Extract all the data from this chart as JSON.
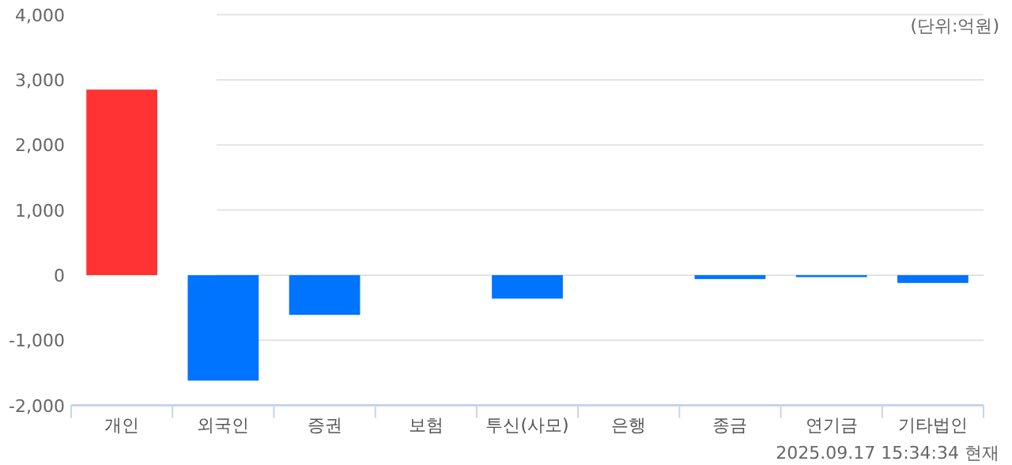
{
  "chart_data": {
    "type": "bar",
    "categories": [
      "개인",
      "외국인",
      "증권",
      "보험",
      "투신(사모)",
      "은행",
      "종금",
      "연기금",
      "기타법인"
    ],
    "values": [
      2850,
      -1620,
      -610,
      0,
      -360,
      0,
      -60,
      -30,
      -120
    ],
    "colors": [
      "#ff3333",
      "#0073ff",
      "#0073ff",
      "#0073ff",
      "#0073ff",
      "#0073ff",
      "#0073ff",
      "#0073ff",
      "#0073ff"
    ],
    "ylim": [
      -2000,
      4000
    ],
    "yticks": [
      {
        "value": -2000,
        "label": "-2,000"
      },
      {
        "value": -1000,
        "label": "-1,000"
      },
      0,
      {
        "value": 1000,
        "label": "1,000"
      },
      {
        "value": 2000,
        "label": "2,000"
      },
      {
        "value": 3000,
        "label": "3,000"
      },
      {
        "value": 4000,
        "label": "4,000"
      }
    ],
    "grid": "y",
    "annotations": [
      "(단위:억원)",
      "2025.09.17 15:34:34 현재"
    ]
  }
}
